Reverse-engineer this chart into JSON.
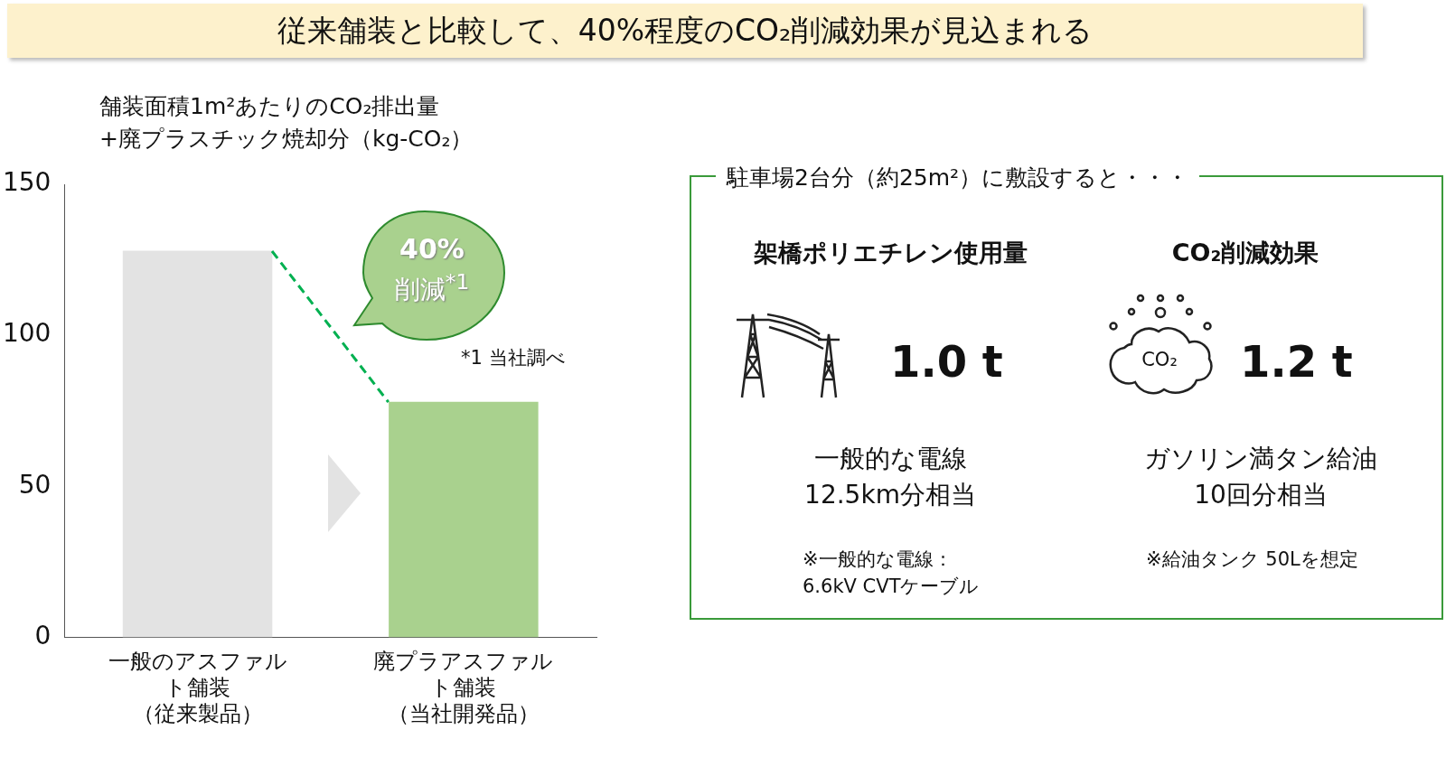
{
  "chart_data": [
    {
      "type": "bar",
      "title": "従来舗装と比較して、40%程度のCO₂削減効果が見込まれる",
      "ylabel": "舗装面積1m²あたりのCO₂排出量\n+廃プラスチック焼却分（kg-CO₂）",
      "categories": [
        "一般のアスファルト舗装（従来製品）",
        "廃プラアスファルト舗装（当社開発品）"
      ],
      "values": [
        128,
        78
      ],
      "colors": [
        "#e3e3e3",
        "#a9d18e"
      ],
      "ylim": [
        0,
        150
      ],
      "yticks": [
        0,
        50,
        100,
        150
      ],
      "grid": false,
      "legend": false,
      "annotations": [
        "40%\n削減$^{*1}$",
        "*1 当社調べ"
      ]
    },
    {
      "type": "other",
      "title": "駐車場2台分（約25m²）に敷設すると・・・",
      "categories": [
        "架橋ポリエチレン使用量",
        "CO₂削減効果"
      ],
      "value_labels": [
        "1.0 t",
        "1.2 t"
      ],
      "annotations": [
        "一般的な電線\n12.5km分相当",
        "ガソリン満タン給油\n10回分相当",
        "※一般的な電線：\n6.6kV CVTケーブル",
        "※給油タンク 50Lを想定",
        "CO₂"
      ]
    }
  ]
}
